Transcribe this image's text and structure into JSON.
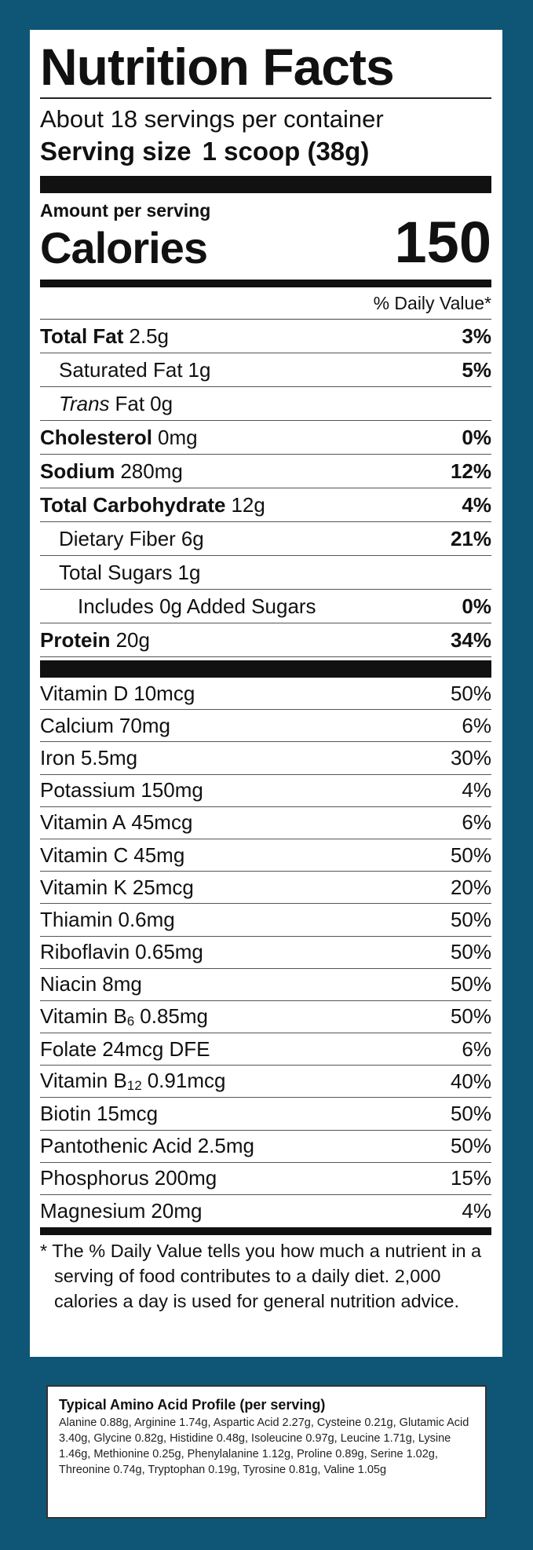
{
  "header": {
    "title": "Nutrition Facts",
    "servings": "About 18 servings per container",
    "serving_size_label": "Serving size",
    "serving_size": "1 scoop (38g)"
  },
  "calories": {
    "amount_per_serving": "Amount per serving",
    "label": "Calories",
    "value": "150"
  },
  "daily_value_header": "% Daily Value*",
  "nutrients": [
    {
      "name": "Total Fat",
      "amount": "2.5g",
      "dv": "3%",
      "indent": 0
    },
    {
      "name": "Saturated Fat",
      "amount": "1g",
      "dv": "5%",
      "indent": 1
    },
    {
      "name_italic": "Trans",
      "name": "Fat",
      "amount": "0g",
      "indent": 1
    },
    {
      "name": "Cholesterol",
      "amount": "0mg",
      "dv": "0%",
      "indent": 0
    },
    {
      "name": "Sodium",
      "amount": "280mg",
      "dv": "12%",
      "indent": 0
    },
    {
      "name": "Total Carbohydrate",
      "amount": "12g",
      "dv": "4%",
      "indent": 0
    },
    {
      "name": "Dietary Fiber",
      "amount": "6g",
      "dv": "21%",
      "indent": 1
    },
    {
      "name": "Total Sugars",
      "amount": "1g",
      "indent": 1
    },
    {
      "name": "Includes 0g Added Sugars",
      "dv": "0%",
      "indent": 2
    },
    {
      "name": "Protein",
      "amount": "20g",
      "dv": "34%",
      "indent": 0
    }
  ],
  "vitamins": [
    {
      "name": "Vitamin D",
      "amount": "10mcg",
      "dv": "50%"
    },
    {
      "name": "Calcium",
      "amount": "70mg",
      "dv": "6%"
    },
    {
      "name": "Iron",
      "amount": "5.5mg",
      "dv": "30%"
    },
    {
      "name": "Potassium",
      "amount": "150mg",
      "dv": "4%"
    },
    {
      "name": "Vitamin A",
      "amount": "45mcg",
      "dv": "6%"
    },
    {
      "name": "Vitamin C",
      "amount": "45mg",
      "dv": "50%"
    },
    {
      "name": "Vitamin K",
      "amount": "25mcg",
      "dv": "20%"
    },
    {
      "name": "Thiamin",
      "amount": "0.6mg",
      "dv": "50%"
    },
    {
      "name": "Riboflavin",
      "amount": "0.65mg",
      "dv": "50%"
    },
    {
      "name": "Niacin",
      "amount": "8mg",
      "dv": "50%"
    },
    {
      "name": "Vitamin B",
      "sub": "6",
      "amount": "0.85mg",
      "dv": "50%"
    },
    {
      "name": "Folate",
      "amount": "24mcg DFE",
      "dv": "6%"
    },
    {
      "name": "Vitamin B",
      "sub": "12",
      "amount": "0.91mcg",
      "dv": "40%"
    },
    {
      "name": "Biotin",
      "amount": "15mcg",
      "dv": "50%"
    },
    {
      "name": "Pantothenic Acid",
      "amount": "2.5mg",
      "dv": "50%"
    },
    {
      "name": "Phosphorus",
      "amount": "200mg",
      "dv": "15%"
    },
    {
      "name": "Magnesium",
      "amount": "20mg",
      "dv": "4%"
    }
  ],
  "footnote": "* The % Daily Value tells you how much a nutrient in a serving of food contributes to a daily diet. 2,000 calories a day is used for general nutrition advice.",
  "amino": {
    "title": "Typical Amino Acid Profile (per serving)",
    "text": "Alanine 0.88g, Arginine 1.74g, Aspartic Acid 2.27g, Cysteine 0.21g, Glutamic Acid 3.40g, Glycine 0.82g, Histidine 0.48g, Isoleucine 0.97g, Leucine 1.71g, Lysine 1.46g, Methionine 0.25g, Phenylalanine 1.12g, Proline 0.89g, Serine 1.02g, Threonine 0.74g, Tryptophan 0.19g, Tyrosine 0.81g, Valine 1.05g"
  }
}
